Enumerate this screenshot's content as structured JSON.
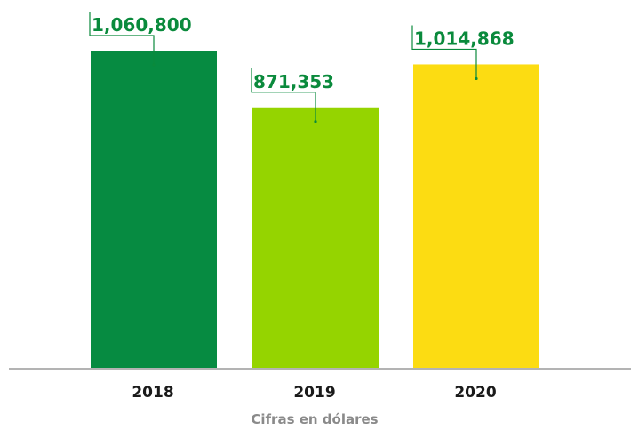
{
  "chart_data": {
    "type": "bar",
    "categories": [
      "2018",
      "2019",
      "2020"
    ],
    "values": [
      1060800,
      871353,
      1014868
    ],
    "data_labels": [
      "1,060,800",
      "871,353",
      "1,014,868"
    ],
    "colors": [
      "#068b41",
      "#95d400",
      "#fcdc12"
    ],
    "label_color": "#0a8a3c",
    "xlabel": "Cifras en dólares",
    "ylabel": "",
    "grid": false,
    "legend": "none"
  }
}
